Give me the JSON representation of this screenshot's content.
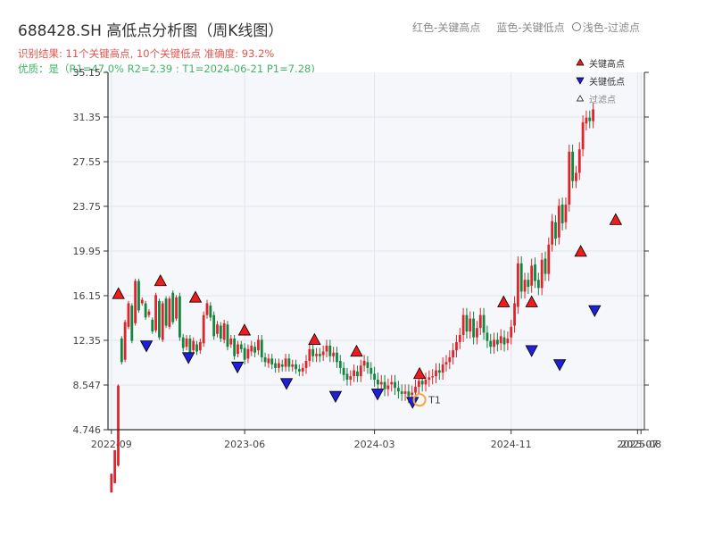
{
  "header": {
    "title": "688428.SH 高低点分析图（周K线图）",
    "legend_red": "红色-关键高点",
    "legend_blue": "蓝色-关键低点",
    "legend_light": "浅色-过滤点",
    "summary": "识别结果: 11个关键高点, 10个关键低点  准确度: 93.2%",
    "quality": "优质：是（R1=47.0%  R2=2.39 ; T1=2024-06-21 P1=7.28)"
  },
  "chart_data": {
    "type": "candlestick",
    "ylim": [
      4.746,
      35.15
    ],
    "yticks": [
      "4.746",
      "8.547",
      "12.35",
      "16.15",
      "19.95",
      "23.75",
      "27.55",
      "31.35",
      "35.15"
    ],
    "xticks": [
      {
        "t": 0,
        "label": "2022-09"
      },
      {
        "t": 39,
        "label": "2023-06"
      },
      {
        "t": 77,
        "label": "2024-03"
      },
      {
        "t": 117,
        "label": "2024-11"
      },
      {
        "t": 154,
        "label": "2025-07"
      },
      {
        "t": 155,
        "label": "2025-08"
      }
    ],
    "candles": [
      [
        -0.6,
        1,
        0
      ],
      [
        0.2,
        3,
        0
      ],
      [
        1.7,
        8.5,
        1
      ],
      [
        12.5,
        10.5,
        2
      ],
      [
        10.7,
        13.9,
        2
      ],
      [
        13.5,
        15.5,
        2
      ],
      [
        15.3,
        12.3,
        2
      ],
      [
        13.8,
        17.4,
        2
      ],
      [
        17.4,
        14.9,
        2
      ],
      [
        15.5,
        15.8,
        2
      ],
      [
        15.5,
        14.3,
        2
      ],
      [
        14.5,
        14.8,
        2
      ],
      [
        14.1,
        13.1,
        2
      ],
      [
        13.2,
        16.2,
        2
      ],
      [
        15.7,
        12.6,
        2
      ],
      [
        12.4,
        15.5,
        2
      ],
      [
        15.9,
        13.6,
        2
      ],
      [
        13.5,
        15.9,
        2
      ],
      [
        16.4,
        13.9,
        2
      ],
      [
        14.2,
        16.0,
        2
      ],
      [
        16.1,
        12.6,
        3
      ],
      [
        12.6,
        11.7,
        3
      ],
      [
        11.8,
        12.5,
        3
      ],
      [
        12.5,
        11.3,
        3
      ],
      [
        11.5,
        12.3,
        3
      ],
      [
        12.0,
        11.4,
        3
      ],
      [
        11.5,
        12.2,
        3
      ],
      [
        12.1,
        14.5,
        3
      ],
      [
        14.5,
        15.5,
        3
      ],
      [
        15.3,
        14.3,
        3
      ],
      [
        14.5,
        12.7,
        3
      ],
      [
        12.9,
        13.7,
        3
      ],
      [
        13.6,
        12.5,
        3
      ],
      [
        12.4,
        13.8,
        3
      ],
      [
        13.7,
        11.8,
        3
      ],
      [
        12.0,
        12.5,
        3
      ],
      [
        12.5,
        11.0,
        3
      ],
      [
        11.2,
        12.0,
        3
      ],
      [
        12.0,
        11.6,
        3
      ],
      [
        11.7,
        10.7,
        4
      ],
      [
        10.8,
        11.6,
        4
      ],
      [
        11.4,
        11.9,
        4
      ],
      [
        11.8,
        11.3,
        4
      ],
      [
        11.5,
        12.4,
        4
      ],
      [
        12.4,
        10.9,
        4
      ],
      [
        10.9,
        10.5,
        4
      ],
      [
        10.4,
        10.8,
        4
      ],
      [
        10.8,
        10.3,
        4
      ],
      [
        10.4,
        10.0,
        4
      ],
      [
        10.0,
        10.4,
        4
      ],
      [
        10.3,
        10.1,
        4
      ],
      [
        10.1,
        10.8,
        4
      ],
      [
        10.8,
        10.1,
        4
      ],
      [
        10.1,
        10.3,
        4
      ],
      [
        10.3,
        9.9,
        4
      ],
      [
        9.9,
        9.7,
        4
      ],
      [
        9.7,
        10.0,
        4
      ],
      [
        10.0,
        10.6,
        5
      ],
      [
        10.6,
        11.6,
        5
      ],
      [
        11.6,
        11.0,
        5
      ],
      [
        11.0,
        11.2,
        5
      ],
      [
        11.2,
        11.0,
        5
      ],
      [
        11.1,
        11.4,
        5
      ],
      [
        11.4,
        11.9,
        5
      ],
      [
        11.9,
        11.0,
        5
      ],
      [
        11.0,
        11.3,
        5
      ],
      [
        11.3,
        10.5,
        5
      ],
      [
        10.6,
        10.0,
        5
      ],
      [
        10.0,
        9.4,
        5
      ],
      [
        9.5,
        9.0,
        5
      ],
      [
        9.0,
        9.3,
        5
      ],
      [
        9.3,
        9.8,
        5
      ],
      [
        9.7,
        9.3,
        5
      ],
      [
        9.3,
        10.2,
        5
      ],
      [
        10.2,
        10.6,
        5
      ],
      [
        10.5,
        10.0,
        5
      ],
      [
        10.0,
        9.5,
        5
      ],
      [
        9.5,
        9.0,
        6
      ],
      [
        9.0,
        8.6,
        6
      ],
      [
        8.6,
        8.8,
        6
      ],
      [
        8.8,
        8.2,
        6
      ],
      [
        8.2,
        8.5,
        6
      ],
      [
        8.6,
        8.8,
        6
      ],
      [
        8.8,
        8.3,
        6
      ],
      [
        8.3,
        8.0,
        6
      ],
      [
        8.0,
        7.8,
        6
      ],
      [
        7.8,
        8.0,
        6
      ],
      [
        8.0,
        7.6,
        6
      ],
      [
        7.7,
        7.9,
        6
      ],
      [
        7.9,
        8.4,
        6
      ],
      [
        8.4,
        8.9,
        6
      ],
      [
        8.9,
        8.6,
        6
      ],
      [
        8.6,
        9.0,
        6
      ],
      [
        9.0,
        9.2,
        6
      ],
      [
        9.2,
        9.3,
        6
      ],
      [
        9.3,
        9.8,
        6
      ],
      [
        9.8,
        9.6,
        6
      ],
      [
        9.6,
        10.3,
        6
      ],
      [
        10.3,
        10.5,
        6
      ],
      [
        10.5,
        10.9,
        6
      ],
      [
        10.9,
        11.5,
        6
      ],
      [
        11.5,
        12.2,
        6
      ],
      [
        12.2,
        12.8,
        6
      ],
      [
        12.8,
        14.5,
        6
      ],
      [
        14.5,
        13.1,
        6
      ],
      [
        13.1,
        14.2,
        6
      ],
      [
        14.2,
        12.6,
        6
      ],
      [
        12.6,
        13.4,
        6
      ],
      [
        13.4,
        14.5,
        6
      ],
      [
        14.5,
        13.0,
        6
      ],
      [
        13.0,
        12.3,
        6
      ],
      [
        12.3,
        11.8,
        6
      ],
      [
        11.8,
        12.4,
        6
      ],
      [
        12.4,
        12.0,
        6
      ],
      [
        12.1,
        12.7,
        6
      ],
      [
        12.6,
        12.0,
        6
      ],
      [
        12.1,
        12.5,
        6
      ],
      [
        12.6,
        13.5,
        6
      ],
      [
        13.6,
        15.5,
        6
      ],
      [
        15.2,
        18.9,
        6
      ],
      [
        18.9,
        16.5,
        6
      ],
      [
        16.5,
        17.5,
        6
      ],
      [
        17.5,
        16.9,
        6
      ],
      [
        17.0,
        18.7,
        6
      ],
      [
        18.8,
        17.4,
        6
      ],
      [
        17.5,
        16.8,
        6
      ],
      [
        16.8,
        19.2,
        6
      ],
      [
        19.3,
        18.0,
        6
      ],
      [
        18.0,
        20.5,
        6
      ],
      [
        20.5,
        22.5,
        6
      ],
      [
        22.4,
        21.0,
        6
      ],
      [
        21.1,
        23.8,
        6
      ],
      [
        23.9,
        22.3,
        6
      ],
      [
        22.4,
        23.9,
        6
      ],
      [
        23.9,
        28.4,
        6
      ],
      [
        28.4,
        25.9,
        6
      ],
      [
        25.9,
        26.6,
        6
      ],
      [
        26.6,
        28.6,
        6
      ],
      [
        28.6,
        30.9,
        6
      ],
      [
        30.8,
        31.3,
        6
      ],
      [
        31.3,
        31.0,
        6
      ],
      [
        31.0,
        32.0,
        6
      ]
    ],
    "highs": [
      [
        1,
        15.9
      ],
      [
        7,
        17.0
      ],
      [
        12,
        15.6
      ],
      [
        19,
        12.8
      ],
      [
        29,
        12.0
      ],
      [
        35,
        11.0
      ],
      [
        44,
        9.1
      ],
      [
        56,
        15.2
      ],
      [
        60,
        15.2
      ],
      [
        67,
        19.5
      ],
      [
        72,
        22.2
      ]
    ],
    "lows": [
      [
        5,
        12.3
      ],
      [
        11,
        11.3
      ],
      [
        18,
        10.5
      ],
      [
        25,
        9.1
      ],
      [
        32,
        8.0
      ],
      [
        38,
        8.2
      ],
      [
        43,
        7.5
      ],
      [
        60,
        11.9
      ],
      [
        64,
        10.7
      ],
      [
        69,
        15.3
      ]
    ],
    "t1_label": "T1",
    "t1": [
      44,
      7.28
    ],
    "legend": [
      "关键高点",
      "关键低点",
      "过滤点"
    ]
  },
  "colors": {
    "up": "#e0242b",
    "down": "#12853e",
    "high": "#ee1c1c",
    "low": "#1f1fd6",
    "t1": "#f2a93b",
    "plot_bg": "#f5f7fa",
    "grid": "#e1e5ea"
  }
}
